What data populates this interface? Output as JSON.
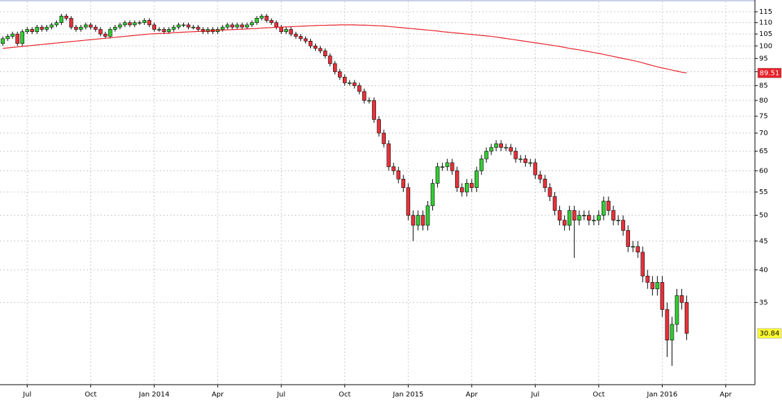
{
  "chart_data": {
    "type": "candlestick",
    "categories": [
      null,
      null,
      null,
      null,
      null,
      "Jul",
      null,
      null,
      null,
      null,
      null,
      null,
      null,
      null,
      null,
      null,
      null,
      null,
      "Oct",
      null,
      null,
      null,
      null,
      null,
      null,
      null,
      null,
      null,
      null,
      null,
      null,
      "Jan 2014",
      null,
      null,
      null,
      null,
      null,
      null,
      null,
      null,
      null,
      null,
      null,
      null,
      "Apr",
      null,
      null,
      null,
      null,
      null,
      null,
      null,
      null,
      null,
      null,
      null,
      null,
      "Jul",
      null,
      null,
      null,
      null,
      null,
      null,
      null,
      null,
      null,
      null,
      null,
      null,
      "Oct",
      null,
      null,
      null,
      null,
      null,
      null,
      null,
      null,
      null,
      null,
      null,
      null,
      "Jan 2015",
      null,
      null,
      null,
      null,
      null,
      null,
      null,
      null,
      null,
      null,
      null,
      null,
      "Apr",
      null,
      null,
      null,
      null,
      null,
      null,
      null,
      null,
      null,
      null,
      null,
      null,
      "Jul",
      null,
      null,
      null,
      null,
      null,
      null,
      null,
      null,
      null,
      null,
      null,
      null,
      "Oct",
      null,
      null,
      null,
      null,
      null,
      null,
      null,
      null,
      null,
      null,
      null,
      null,
      "Jan 2016",
      null,
      null,
      null,
      null,
      null,
      null,
      null,
      null,
      null,
      null,
      null,
      null,
      "Apr",
      null,
      null,
      null,
      null,
      null,
      null
    ],
    "open": [
      101,
      103,
      104,
      105,
      101,
      106,
      107,
      106,
      108,
      107,
      108,
      109,
      110,
      113,
      112,
      108,
      107,
      108,
      109,
      108,
      107,
      105,
      104,
      107,
      108,
      109,
      110,
      109,
      110,
      110,
      111,
      109,
      107,
      107,
      106,
      107,
      108,
      109,
      109,
      108,
      108,
      107,
      106,
      107,
      106,
      107,
      108,
      109,
      108,
      109,
      108,
      109,
      110,
      112,
      113,
      111,
      110,
      108,
      106,
      107,
      105,
      104,
      103,
      102,
      100,
      99,
      98,
      96,
      93,
      90,
      88,
      86,
      86,
      85,
      83,
      80,
      80,
      74,
      70,
      67,
      61,
      60,
      58,
      56,
      50,
      48,
      50,
      48,
      52,
      57,
      61,
      61,
      62,
      60,
      56,
      55,
      57,
      56,
      60,
      63,
      65,
      66,
      67,
      66,
      66,
      65,
      63,
      63,
      62,
      62,
      59,
      58,
      56,
      54,
      51,
      49,
      48,
      51,
      49,
      50,
      50,
      49,
      49,
      50,
      53,
      51,
      49,
      49,
      47,
      44,
      44,
      43,
      39,
      38,
      37,
      38,
      34,
      30,
      32,
      36,
      35,
      null,
      null,
      null,
      null,
      null,
      null,
      null,
      null,
      null,
      null,
      null,
      null,
      null,
      null
    ],
    "high": [
      104,
      105,
      106,
      106,
      107,
      108,
      108,
      109,
      109,
      109,
      110,
      111,
      114,
      114,
      113,
      109,
      109,
      110,
      110,
      109,
      108,
      106,
      108,
      109,
      110,
      111,
      111,
      111,
      111,
      112,
      112,
      110,
      108,
      108,
      108,
      109,
      110,
      110,
      110,
      109,
      109,
      108,
      108,
      108,
      108,
      109,
      110,
      110,
      110,
      110,
      110,
      111,
      113,
      114,
      114,
      112,
      111,
      109,
      108,
      108,
      106,
      105,
      104,
      103,
      101,
      100,
      99,
      97,
      94,
      91,
      89,
      87,
      87,
      86,
      84,
      81,
      81,
      75,
      71,
      68,
      62,
      61,
      59,
      57,
      51,
      51,
      51,
      53,
      58,
      62,
      62,
      63,
      63,
      61,
      57,
      58,
      58,
      61,
      64,
      66,
      67,
      68,
      68,
      67,
      67,
      66,
      64,
      64,
      63,
      63,
      60,
      59,
      57,
      55,
      52,
      50,
      52,
      52,
      51,
      51,
      51,
      50,
      51,
      54,
      54,
      52,
      50,
      50,
      48,
      45,
      45,
      44,
      40,
      39,
      39,
      39,
      35,
      33,
      37,
      37,
      36,
      null,
      null,
      null,
      null,
      null,
      null,
      null,
      null,
      null,
      null,
      null,
      null,
      null,
      null
    ],
    "low": [
      100,
      102,
      103,
      100,
      100,
      105,
      105,
      105,
      106,
      106,
      107,
      108,
      109,
      111,
      107,
      106,
      106,
      107,
      107,
      106,
      104,
      103,
      103,
      106,
      107,
      108,
      108,
      108,
      109,
      109,
      108,
      106,
      106,
      105,
      105,
      106,
      107,
      108,
      107,
      107,
      106,
      105,
      105,
      105,
      105,
      106,
      107,
      107,
      107,
      107,
      107,
      108,
      109,
      111,
      110,
      109,
      107,
      105,
      105,
      104,
      103,
      102,
      101,
      99,
      98,
      97,
      95,
      92,
      89,
      87,
      85,
      85,
      84,
      82,
      79,
      79,
      73,
      69,
      66,
      60,
      59,
      57,
      55,
      49,
      45,
      47,
      47,
      47,
      51,
      56,
      60,
      60,
      59,
      55,
      54,
      54,
      55,
      55,
      59,
      62,
      64,
      65,
      65,
      65,
      64,
      62,
      62,
      61,
      61,
      58,
      57,
      55,
      53,
      50,
      48,
      47,
      47,
      42,
      48,
      49,
      48,
      48,
      48,
      49,
      50,
      48,
      48,
      46,
      43,
      43,
      42,
      38,
      37,
      36,
      36,
      33,
      28,
      27,
      31,
      34,
      30,
      null,
      null,
      null,
      null,
      null,
      null,
      null,
      null,
      null,
      null,
      null,
      null,
      null,
      null
    ],
    "close": [
      103,
      104,
      105,
      101,
      106,
      107,
      106,
      108,
      107,
      108,
      109,
      110,
      113,
      112,
      108,
      107,
      108,
      109,
      108,
      107,
      105,
      104,
      107,
      108,
      109,
      110,
      109,
      110,
      110,
      111,
      109,
      107,
      107,
      106,
      107,
      108,
      109,
      109,
      108,
      108,
      107,
      106,
      107,
      106,
      107,
      108,
      109,
      108,
      109,
      108,
      109,
      110,
      112,
      113,
      111,
      110,
      108,
      106,
      107,
      105,
      104,
      103,
      102,
      100,
      99,
      98,
      96,
      93,
      90,
      88,
      86,
      86,
      85,
      83,
      80,
      80,
      74,
      70,
      67,
      61,
      60,
      58,
      56,
      50,
      48,
      50,
      48,
      52,
      57,
      61,
      61,
      62,
      60,
      56,
      55,
      57,
      56,
      60,
      63,
      65,
      66,
      67,
      66,
      66,
      65,
      63,
      63,
      62,
      62,
      59,
      58,
      56,
      54,
      51,
      49,
      48,
      51,
      49,
      50,
      50,
      49,
      49,
      50,
      53,
      51,
      49,
      49,
      47,
      44,
      44,
      43,
      39,
      38,
      37,
      38,
      34,
      30,
      32,
      36,
      35,
      30.84,
      null,
      null,
      null,
      null,
      null,
      null,
      null,
      null,
      null,
      null,
      null,
      null,
      null,
      null
    ],
    "moving_average": {
      "color": "#e8202a",
      "values": [
        99,
        99.2,
        99.4,
        99.6,
        99.8,
        100,
        100.2,
        100.4,
        100.6,
        100.8,
        101,
        101.2,
        101.4,
        101.6,
        101.8,
        102,
        102.2,
        102.4,
        102.6,
        102.8,
        103,
        103.2,
        103.4,
        103.6,
        103.8,
        104,
        104.2,
        104.4,
        104.6,
        104.8,
        105,
        105.1,
        105.2,
        105.3,
        105.4,
        105.6,
        105.7,
        105.8,
        105.9,
        106,
        106.1,
        106.2,
        106.3,
        106.4,
        106.6,
        106.7,
        106.8,
        106.9,
        107,
        107.1,
        107.2,
        107.3,
        107.4,
        107.6,
        107.7,
        107.8,
        107.9,
        108,
        108.1,
        108.2,
        108.3,
        108.4,
        108.5,
        108.6,
        108.7,
        108.8,
        108.8,
        108.9,
        108.9,
        109,
        109,
        109,
        109,
        108.9,
        108.9,
        108.8,
        108.7,
        108.6,
        108.5,
        108.3,
        108.1,
        107.9,
        107.7,
        107.5,
        107.3,
        107.1,
        106.9,
        106.7,
        106.5,
        106.3,
        106,
        105.8,
        105.6,
        105.4,
        105.2,
        105,
        104.8,
        104.6,
        104.4,
        104.2,
        104,
        103.7,
        103.4,
        103.1,
        102.8,
        102.5,
        102.2,
        101.9,
        101.6,
        101.3,
        101,
        100.7,
        100.4,
        100.1,
        99.8,
        99.4,
        99,
        98.7,
        98.4,
        98,
        97.7,
        97.3,
        97,
        96.6,
        96.2,
        95.8,
        95.4,
        95,
        94.6,
        94.2,
        93.8,
        93.3,
        92.8,
        92.3,
        91.8,
        91.4,
        91,
        90.6,
        90.2,
        89.8,
        89.51,
        null,
        null,
        null,
        null,
        null,
        null,
        null,
        null,
        null,
        null,
        null,
        null,
        null,
        null
      ]
    },
    "up_color": "#33cc33",
    "down_color": "#e8313a",
    "last_price_color": "#ffff33",
    "ylim": [
      25,
      120
    ],
    "yticks": [
      35,
      40,
      45,
      50,
      55,
      60,
      65,
      70,
      75,
      80,
      85,
      90,
      95,
      100,
      105,
      110,
      115
    ],
    "log_scale": true,
    "grid": true
  }
}
